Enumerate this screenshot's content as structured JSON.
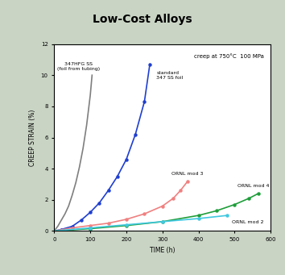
{
  "chart_data": {
    "type": "line",
    "title": "Low-Cost Alloys",
    "annotation": "creep at 750°C  100 MPa",
    "x_label": "TIME (h)",
    "y_label": "CREEP STRAIN (%)",
    "xlim": [
      0,
      600
    ],
    "xticks": [
      0,
      100,
      200,
      300,
      400,
      500,
      600
    ],
    "ylim": [
      0,
      12
    ],
    "yticks": [
      0,
      2,
      4,
      6,
      8,
      10,
      12
    ],
    "series": [
      {
        "name": "347HFG SS\n(foil from tubing)",
        "color": "#7f7f7f",
        "marker": "none",
        "x": [
          0,
          10,
          20,
          30,
          40,
          50,
          60,
          70,
          80,
          90,
          100,
          105
        ],
        "values": [
          0,
          0.3,
          0.7,
          1.1,
          1.6,
          2.3,
          3.1,
          4.1,
          5.3,
          6.8,
          8.7,
          10.0
        ]
      },
      {
        "name": "standard\n347 SS foil",
        "color": "#1f3fd0",
        "marker": "circle",
        "x": [
          0,
          20,
          50,
          75,
          100,
          125,
          150,
          175,
          200,
          225,
          250,
          265
        ],
        "values": [
          0,
          0.1,
          0.3,
          0.7,
          1.2,
          1.8,
          2.6,
          3.5,
          4.6,
          6.2,
          8.3,
          10.7
        ]
      },
      {
        "name": "ORNL mod 3",
        "color": "#f08080",
        "marker": "circle",
        "x": [
          0,
          50,
          100,
          150,
          200,
          250,
          300,
          330,
          350,
          370
        ],
        "values": [
          0,
          0.2,
          0.35,
          0.5,
          0.75,
          1.1,
          1.6,
          2.1,
          2.6,
          3.2
        ]
      },
      {
        "name": "ORNL mod 4",
        "color": "#1e9e3a",
        "marker": "circle",
        "x": [
          0,
          100,
          200,
          300,
          400,
          450,
          500,
          540,
          565
        ],
        "values": [
          0,
          0.15,
          0.35,
          0.6,
          1.0,
          1.3,
          1.7,
          2.1,
          2.4
        ]
      },
      {
        "name": "ORNL mod 2",
        "color": "#40c8e0",
        "marker": "circle",
        "x": [
          0,
          100,
          200,
          300,
          400,
          480
        ],
        "values": [
          0,
          0.2,
          0.4,
          0.6,
          0.8,
          1.0
        ]
      }
    ]
  }
}
